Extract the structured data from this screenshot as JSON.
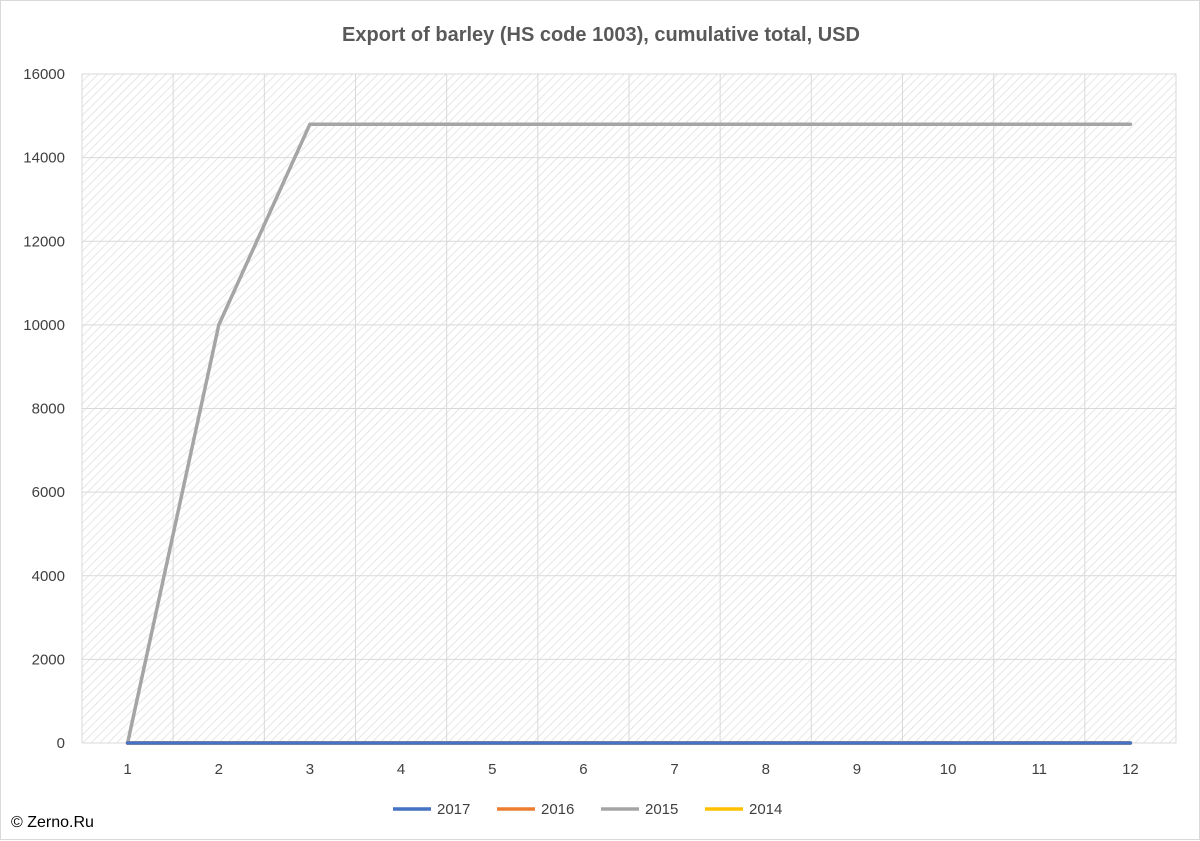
{
  "chart_data": {
    "type": "line",
    "title": "Export of barley (HS code 1003), cumulative total, USD",
    "xlabel": "",
    "ylabel": "",
    "categories": [
      "1",
      "2",
      "3",
      "4",
      "5",
      "6",
      "7",
      "8",
      "9",
      "10",
      "11",
      "12"
    ],
    "ylim": [
      0,
      16000
    ],
    "yticks": [
      "0",
      "2000",
      "4000",
      "6000",
      "8000",
      "10000",
      "12000",
      "14000",
      "16000"
    ],
    "grid": true,
    "legend_position": "bottom",
    "series": [
      {
        "name": "2017",
        "color": "#4472C4",
        "values": [
          0,
          0,
          0,
          0,
          0,
          0,
          0,
          0,
          0,
          0,
          0,
          0
        ]
      },
      {
        "name": "2016",
        "color": "#ED7D31",
        "values": [
          0,
          0,
          0,
          0,
          0,
          0,
          0,
          0,
          0,
          0,
          0,
          0
        ]
      },
      {
        "name": "2015",
        "color": "#A5A5A5",
        "values": [
          0,
          10000,
          14800,
          14800,
          14800,
          14800,
          14800,
          14800,
          14800,
          14800,
          14800,
          14800
        ]
      },
      {
        "name": "2014",
        "color": "#FFC000",
        "values": [
          0,
          0,
          0,
          0,
          0,
          0,
          0,
          0,
          0,
          0,
          0,
          0
        ]
      }
    ]
  },
  "copyright": "© Zerno.Ru"
}
